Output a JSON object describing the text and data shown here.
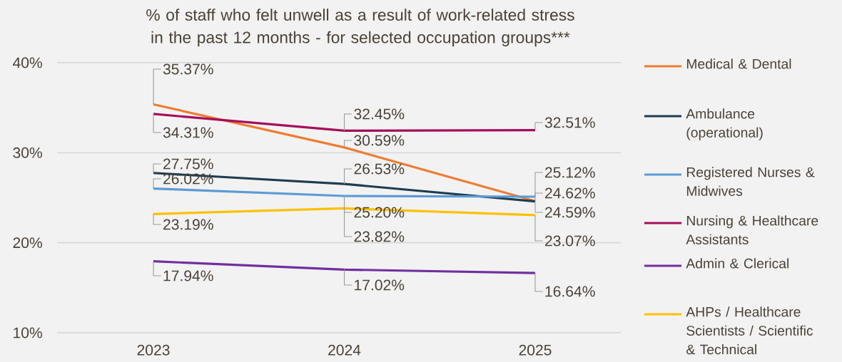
{
  "chart_data": {
    "type": "line",
    "title": "% of staff who felt unwell as a result of work-related stress in the past 12 months - for selected occupation groups***",
    "categories": [
      "2023",
      "2024",
      "2025"
    ],
    "series": [
      {
        "name": "Medical & Dental",
        "color": "#ed7d31",
        "values": [
          35.37,
          30.59,
          24.62
        ],
        "value_labels": [
          "35.37%",
          "30.59%",
          "24.62%"
        ]
      },
      {
        "name": "Ambulance (operational)",
        "color": "#1f3c4f",
        "values": [
          27.75,
          26.53,
          24.59
        ],
        "value_labels": [
          "27.75%",
          "26.53%",
          "24.59%"
        ]
      },
      {
        "name": "Registered Nurses & Midwives",
        "color": "#5b9bd5",
        "values": [
          26.02,
          25.2,
          25.12
        ],
        "value_labels": [
          "26.02%",
          "25.20%",
          "25.12%"
        ]
      },
      {
        "name": "Nursing & Healthcare Assistants",
        "color": "#a50e5c",
        "values": [
          34.31,
          32.45,
          32.51
        ],
        "value_labels": [
          "34.31%",
          "32.45%",
          "32.51%"
        ]
      },
      {
        "name": "Admin & Clerical",
        "color": "#7030a0",
        "values": [
          17.94,
          17.02,
          16.64
        ],
        "value_labels": [
          "17.94%",
          "17.02%",
          "16.64%"
        ]
      },
      {
        "name": "AHPs / Healthcare Scientists / Scientific & Technical",
        "color": "#ffc000",
        "values": [
          23.19,
          23.82,
          23.07
        ],
        "value_labels": [
          "23.19%",
          "23.82%",
          "23.07%"
        ]
      }
    ],
    "ylim": [
      10,
      40
    ],
    "yticks": [
      {
        "value": 10,
        "label": "10%"
      },
      {
        "value": 20,
        "label": "20%"
      },
      {
        "value": 30,
        "label": "30%"
      },
      {
        "value": 40,
        "label": "40%"
      }
    ],
    "grid": "y",
    "legend": "right",
    "line_style": "solid"
  }
}
